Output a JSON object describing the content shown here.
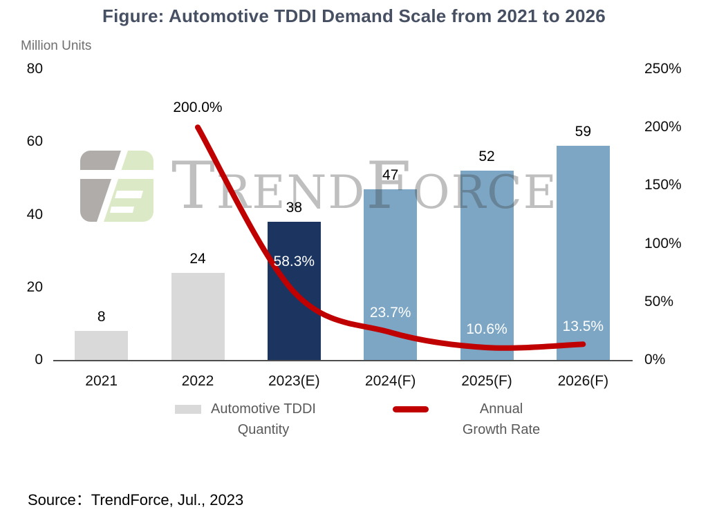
{
  "title": "Figure: Automotive TDDI Demand Scale from 2021 to 2026",
  "y_axis_label": "Million Units",
  "source_text": "Source：TrendForce, Jul., 2023",
  "watermark_text": "TrendForce",
  "legend": {
    "quantity": {
      "line1": "Automotive TDDI",
      "line2": "Quantity",
      "swatch_color": "#D9D9D9"
    },
    "growth": {
      "line1": "Annual",
      "line2": "Growth Rate",
      "swatch_color": "#C00000"
    }
  },
  "chart_data": {
    "type": "bar",
    "title": "Figure: Automotive TDDI Demand Scale from 2021 to 2026",
    "categories": [
      "2021",
      "2022",
      "2023(E)",
      "2024(F)",
      "2025(F)",
      "2026(F)"
    ],
    "series": [
      {
        "name": "Automotive TDDI Quantity",
        "type": "bar",
        "axis": "left",
        "values": [
          8,
          24,
          38,
          47,
          52,
          59
        ],
        "value_labels": [
          "8",
          "24",
          "38",
          "47",
          "52",
          "59"
        ],
        "colors": [
          "#D9D9D9",
          "#D9D9D9",
          "#1C3460",
          "#7CA6C4",
          "#7CA6C4",
          "#7CA6C4"
        ]
      },
      {
        "name": "Annual Growth Rate",
        "type": "line",
        "axis": "right",
        "color": "#C00000",
        "stroke_width": 8,
        "values": [
          null,
          200.0,
          58.3,
          23.7,
          10.6,
          13.5
        ],
        "point_labels": [
          null,
          "200.0%",
          "58.3%",
          "23.7%",
          "10.6%",
          "13.5%"
        ],
        "label_colors": [
          null,
          "#000000",
          "#FFFFFF",
          "#FFFFFF",
          "#FFFFFF",
          "#FFFFFF"
        ],
        "label_dy": [
          null,
          -28,
          -44,
          -28,
          -26,
          -25
        ]
      }
    ],
    "y_left": {
      "label": "Million Units",
      "min": 0,
      "max": 80,
      "ticks": [
        {
          "label": "80",
          "value": 80
        },
        {
          "label": "60",
          "value": 60
        },
        {
          "label": "40",
          "value": 40
        },
        {
          "label": "20",
          "value": 20
        },
        {
          "label": "0",
          "value": 0
        }
      ]
    },
    "y_right": {
      "min": 0,
      "max": 250,
      "ticks": [
        {
          "label": "250%",
          "value": 250
        },
        {
          "label": "200%",
          "value": 200
        },
        {
          "label": "150%",
          "value": 150
        },
        {
          "label": "100%",
          "value": 100
        },
        {
          "label": "50%",
          "value": 50
        },
        {
          "label": "0%",
          "value": 0
        }
      ]
    },
    "grid": false,
    "legend_position": "bottom"
  }
}
